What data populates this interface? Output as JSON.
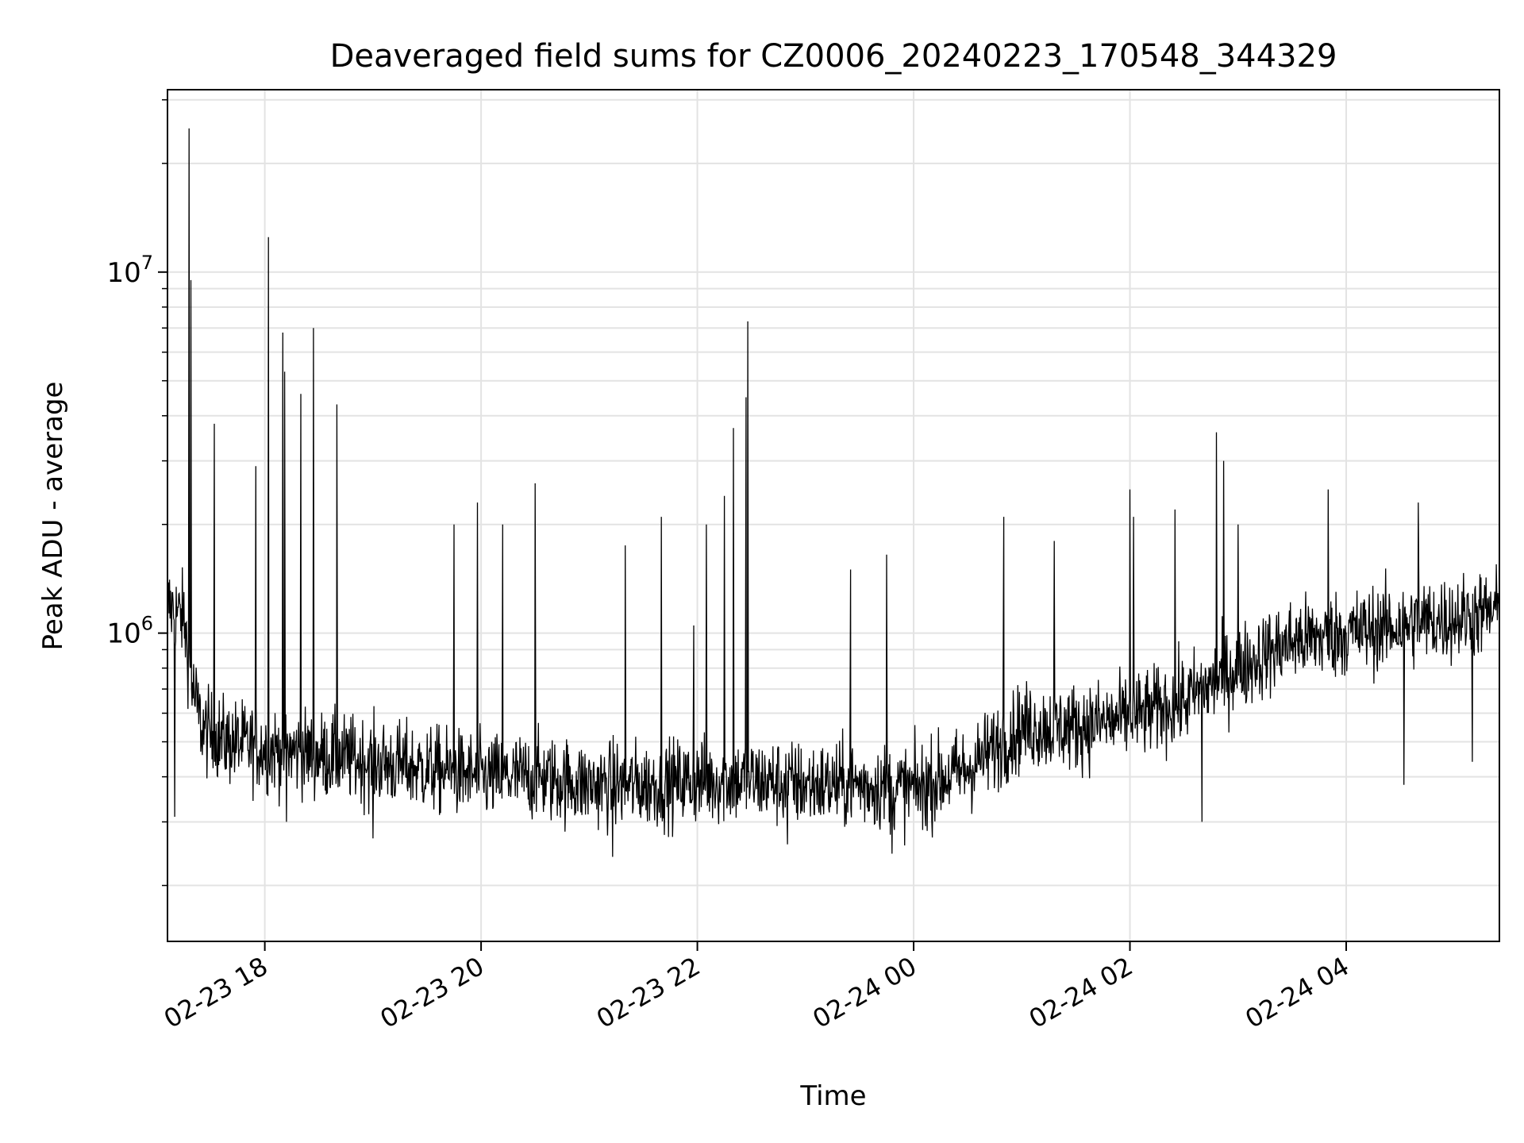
{
  "chart_data": {
    "type": "line",
    "title": "Deaveraged field sums for CZ0006_20240223_170548_344329",
    "xlabel": "Time",
    "ylabel": "Peak ADU - average",
    "yscale": "log",
    "xlim": [
      "2024-02-23 17:06",
      "2024-02-24 05:25"
    ],
    "ylim": [
      140000,
      32000000
    ],
    "x_ticks": [
      {
        "value": "2024-02-23 18:00",
        "label": "02-23 18"
      },
      {
        "value": "2024-02-23 20:00",
        "label": "02-23 20"
      },
      {
        "value": "2024-02-23 22:00",
        "label": "02-23 22"
      },
      {
        "value": "2024-02-24 00:00",
        "label": "02-24 00"
      },
      {
        "value": "2024-02-24 02:00",
        "label": "02-24 02"
      },
      {
        "value": "2024-02-24 04:00",
        "label": "02-24 04"
      }
    ],
    "y_ticks": [
      {
        "value": 1000000,
        "base": "10",
        "exp": "6"
      },
      {
        "value": 10000000,
        "base": "10",
        "exp": "7"
      }
    ],
    "grid": true,
    "line_color": "#000000",
    "series": [
      {
        "x": [
          "2024-02-23 17:06",
          "2024-02-23 17:15",
          "2024-02-23 17:20",
          "2024-02-23 17:25",
          "2024-02-23 17:30",
          "2024-02-23 17:40",
          "2024-02-23 18:00",
          "2024-02-23 18:30",
          "2024-02-23 19:00",
          "2024-02-23 19:30",
          "2024-02-23 20:00",
          "2024-02-23 20:30",
          "2024-02-23 21:00",
          "2024-02-23 21:30",
          "2024-02-23 22:00",
          "2024-02-23 22:30",
          "2024-02-23 23:00",
          "2024-02-23 23:30",
          "2024-02-24 00:00",
          "2024-02-24 00:30",
          "2024-02-24 00:45",
          "2024-02-24 01:00",
          "2024-02-24 01:30",
          "2024-02-24 02:00",
          "2024-02-24 02:30",
          "2024-02-24 03:00",
          "2024-02-24 03:30",
          "2024-02-24 04:00",
          "2024-02-24 04:30",
          "2024-02-24 05:00",
          "2024-02-24 05:25"
        ],
        "y": [
          1200000,
          1100000,
          700000,
          550000,
          520000,
          500000,
          480000,
          460000,
          440000,
          420000,
          400000,
          400000,
          380000,
          380000,
          390000,
          390000,
          380000,
          380000,
          370000,
          420000,
          480000,
          550000,
          550000,
          580000,
          650000,
          800000,
          950000,
          1000000,
          1050000,
          1100000,
          1150000
        ]
      }
    ],
    "spikes": [
      {
        "x": "2024-02-23 17:18",
        "y": 25000000
      },
      {
        "x": "2024-02-23 17:19",
        "y": 9500000
      },
      {
        "x": "2024-02-23 17:32",
        "y": 3800000
      },
      {
        "x": "2024-02-23 17:55",
        "y": 2900000
      },
      {
        "x": "2024-02-23 18:02",
        "y": 12500000
      },
      {
        "x": "2024-02-23 18:10",
        "y": 6800000
      },
      {
        "x": "2024-02-23 18:11",
        "y": 5300000
      },
      {
        "x": "2024-02-23 18:20",
        "y": 4600000
      },
      {
        "x": "2024-02-23 18:27",
        "y": 7000000
      },
      {
        "x": "2024-02-23 18:40",
        "y": 4300000
      },
      {
        "x": "2024-02-23 19:45",
        "y": 2000000
      },
      {
        "x": "2024-02-23 19:58",
        "y": 2300000
      },
      {
        "x": "2024-02-23 20:12",
        "y": 2000000
      },
      {
        "x": "2024-02-23 20:30",
        "y": 2600000
      },
      {
        "x": "2024-02-23 21:20",
        "y": 1750000
      },
      {
        "x": "2024-02-23 21:40",
        "y": 2100000
      },
      {
        "x": "2024-02-23 21:58",
        "y": 1050000
      },
      {
        "x": "2024-02-23 22:05",
        "y": 2000000
      },
      {
        "x": "2024-02-23 22:15",
        "y": 2400000
      },
      {
        "x": "2024-02-23 22:20",
        "y": 3700000
      },
      {
        "x": "2024-02-23 22:27",
        "y": 4500000
      },
      {
        "x": "2024-02-23 22:28",
        "y": 7300000
      },
      {
        "x": "2024-02-23 23:25",
        "y": 1500000
      },
      {
        "x": "2024-02-23 23:45",
        "y": 1650000
      },
      {
        "x": "2024-02-24 00:50",
        "y": 2100000
      },
      {
        "x": "2024-02-24 01:18",
        "y": 1800000
      },
      {
        "x": "2024-02-24 02:00",
        "y": 2500000
      },
      {
        "x": "2024-02-24 02:02",
        "y": 2100000
      },
      {
        "x": "2024-02-24 02:25",
        "y": 2200000
      },
      {
        "x": "2024-02-24 02:48",
        "y": 3600000
      },
      {
        "x": "2024-02-24 02:52",
        "y": 3000000
      },
      {
        "x": "2024-02-24 03:00",
        "y": 2000000
      },
      {
        "x": "2024-02-24 03:50",
        "y": 2500000
      },
      {
        "x": "2024-02-24 04:40",
        "y": 2300000
      }
    ],
    "dips": [
      {
        "x": "2024-02-23 17:10",
        "y": 310000
      },
      {
        "x": "2024-02-23 18:12",
        "y": 300000
      },
      {
        "x": "2024-02-23 19:00",
        "y": 270000
      },
      {
        "x": "2024-02-23 20:28",
        "y": 330000
      },
      {
        "x": "2024-02-23 21:13",
        "y": 240000
      },
      {
        "x": "2024-02-23 22:50",
        "y": 260000
      },
      {
        "x": "2024-02-23 23:48",
        "y": 245000
      },
      {
        "x": "2024-02-24 00:05",
        "y": 285000
      },
      {
        "x": "2024-02-24 02:40",
        "y": 300000
      },
      {
        "x": "2024-02-24 04:32",
        "y": 380000
      },
      {
        "x": "2024-02-24 05:10",
        "y": 440000
      }
    ]
  }
}
